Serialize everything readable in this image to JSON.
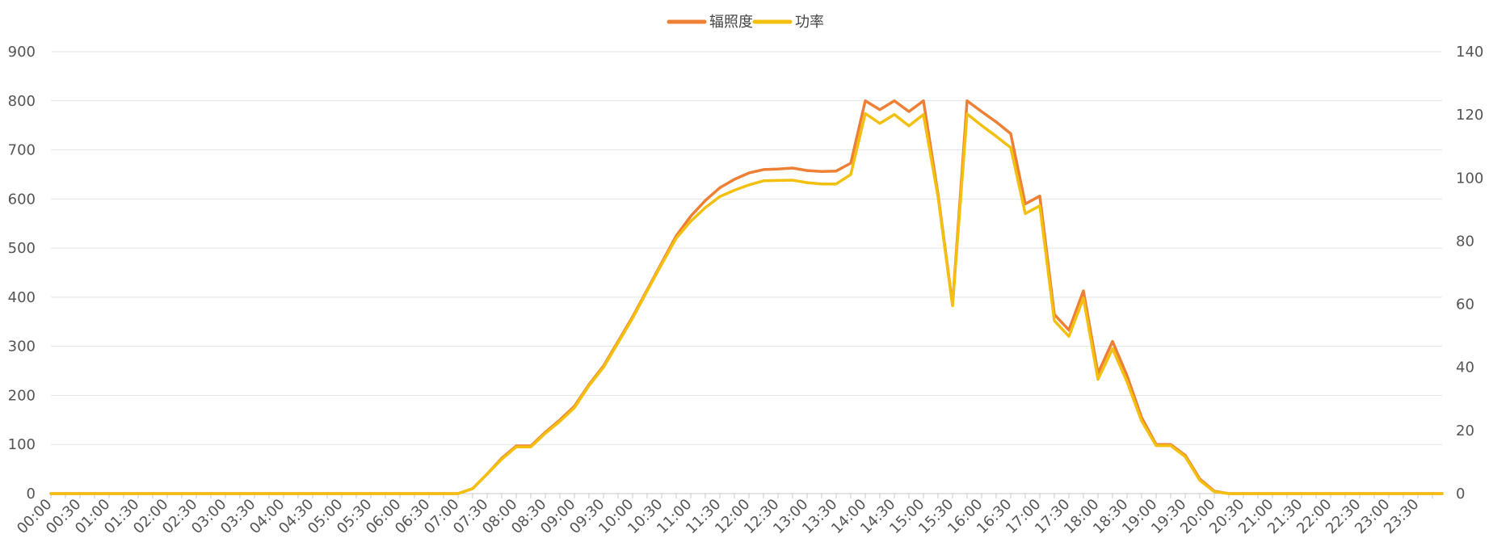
{
  "chart_data": {
    "type": "line",
    "title": "",
    "xlabel": "",
    "ylabel": "",
    "y2label": "",
    "legend_position": "top-center",
    "grid": true,
    "ylim": [
      0,
      900
    ],
    "y_ticks": [
      0,
      100,
      200,
      300,
      400,
      500,
      600,
      700,
      800,
      900
    ],
    "y2lim": [
      0,
      140
    ],
    "y2_ticks": [
      0,
      20,
      40,
      60,
      80,
      100,
      120,
      140
    ],
    "x_labels": [
      "00:00",
      "00:30",
      "01:00",
      "01:30",
      "02:00",
      "02:30",
      "03:00",
      "03:30",
      "04:00",
      "04:30",
      "05:00",
      "05:30",
      "06:00",
      "06:30",
      "07:00",
      "07:30",
      "08:00",
      "08:30",
      "09:00",
      "09:30",
      "10:00",
      "10:30",
      "11:00",
      "11:30",
      "12:00",
      "12:30",
      "13:00",
      "13:30",
      "14:00",
      "14:30",
      "15:00",
      "15:30",
      "16:00",
      "16:30",
      "17:00",
      "17:30",
      "18:00",
      "18:30",
      "19:00",
      "19:30",
      "20:00",
      "20:30",
      "21:00",
      "21:30",
      "22:00",
      "22:30",
      "23:00",
      "23:30"
    ],
    "x_min": "00:00",
    "x_max": "23:55",
    "series": [
      {
        "name": "辐照度",
        "axis": "left",
        "color": "#ee8035",
        "points": [
          [
            "00:00",
            0
          ],
          [
            "07:00",
            0
          ],
          [
            "07:15",
            10
          ],
          [
            "07:30",
            40
          ],
          [
            "07:45",
            72
          ],
          [
            "08:00",
            97
          ],
          [
            "08:15",
            97
          ],
          [
            "08:30",
            125
          ],
          [
            "08:45",
            150
          ],
          [
            "09:00",
            178
          ],
          [
            "09:15",
            222
          ],
          [
            "09:30",
            260
          ],
          [
            "09:45",
            310
          ],
          [
            "10:00",
            360
          ],
          [
            "10:15",
            415
          ],
          [
            "10:30",
            470
          ],
          [
            "10:45",
            525
          ],
          [
            "11:00",
            565
          ],
          [
            "11:15",
            597
          ],
          [
            "11:30",
            623
          ],
          [
            "11:45",
            640
          ],
          [
            "12:00",
            653
          ],
          [
            "12:15",
            660
          ],
          [
            "12:30",
            661
          ],
          [
            "12:45",
            663
          ],
          [
            "13:00",
            658
          ],
          [
            "13:15",
            656
          ],
          [
            "13:30",
            657
          ],
          [
            "13:45",
            673
          ],
          [
            "14:00",
            800
          ],
          [
            "14:15",
            782
          ],
          [
            "14:30",
            800
          ],
          [
            "14:45",
            778
          ],
          [
            "15:00",
            800
          ],
          [
            "15:15",
            610
          ],
          [
            "15:30",
            385
          ],
          [
            "15:45",
            800
          ],
          [
            "16:00",
            778
          ],
          [
            "16:15",
            757
          ],
          [
            "16:30",
            733
          ],
          [
            "16:45",
            590
          ],
          [
            "17:00",
            606
          ],
          [
            "17:15",
            365
          ],
          [
            "17:30",
            333
          ],
          [
            "17:45",
            413
          ],
          [
            "18:00",
            245
          ],
          [
            "18:15",
            310
          ],
          [
            "18:30",
            240
          ],
          [
            "18:45",
            155
          ],
          [
            "19:00",
            100
          ],
          [
            "19:15",
            100
          ],
          [
            "19:30",
            78
          ],
          [
            "19:45",
            30
          ],
          [
            "20:00",
            5
          ],
          [
            "20:15",
            0
          ],
          [
            "23:55",
            0
          ]
        ]
      },
      {
        "name": "功率",
        "axis": "right",
        "color": "#f3c010",
        "points": [
          [
            "00:00",
            0
          ],
          [
            "07:00",
            0
          ],
          [
            "07:15",
            1.6
          ],
          [
            "07:30",
            6.2
          ],
          [
            "07:45",
            10.9
          ],
          [
            "08:00",
            14.8
          ],
          [
            "08:15",
            14.8
          ],
          [
            "08:30",
            19.1
          ],
          [
            "08:45",
            22.9
          ],
          [
            "09:00",
            27.2
          ],
          [
            "09:15",
            34.2
          ],
          [
            "09:30",
            40.0
          ],
          [
            "09:45",
            47.8
          ],
          [
            "10:00",
            55.6
          ],
          [
            "10:15",
            64.2
          ],
          [
            "10:30",
            72.7
          ],
          [
            "10:45",
            80.9
          ],
          [
            "11:00",
            86.3
          ],
          [
            "11:15",
            90.6
          ],
          [
            "11:30",
            94.1
          ],
          [
            "11:45",
            96.1
          ],
          [
            "12:00",
            97.8
          ],
          [
            "12:15",
            99.1
          ],
          [
            "12:30",
            99.2
          ],
          [
            "12:45",
            99.3
          ],
          [
            "13:00",
            98.5
          ],
          [
            "13:15",
            98.1
          ],
          [
            "13:30",
            98.1
          ],
          [
            "13:45",
            101.1
          ],
          [
            "14:00",
            120.4
          ],
          [
            "14:15",
            117.3
          ],
          [
            "14:30",
            120.1
          ],
          [
            "14:45",
            116.5
          ],
          [
            "15:00",
            120.1
          ],
          [
            "15:15",
            94.0
          ],
          [
            "15:30",
            59.5
          ],
          [
            "15:45",
            120.3
          ],
          [
            "16:00",
            116.6
          ],
          [
            "16:15",
            113.2
          ],
          [
            "16:30",
            109.6
          ],
          [
            "16:45",
            88.7
          ],
          [
            "17:00",
            91.2
          ],
          [
            "17:15",
            54.8
          ],
          [
            "17:30",
            49.8
          ],
          [
            "17:45",
            61.9
          ],
          [
            "18:00",
            36.2
          ],
          [
            "18:15",
            45.9
          ],
          [
            "18:30",
            35.4
          ],
          [
            "18:45",
            23.0
          ],
          [
            "19:00",
            15.2
          ],
          [
            "19:15",
            15.2
          ],
          [
            "19:30",
            11.7
          ],
          [
            "19:45",
            4.2
          ],
          [
            "20:00",
            0.6
          ],
          [
            "20:15",
            0
          ],
          [
            "23:55",
            0
          ]
        ]
      }
    ]
  }
}
